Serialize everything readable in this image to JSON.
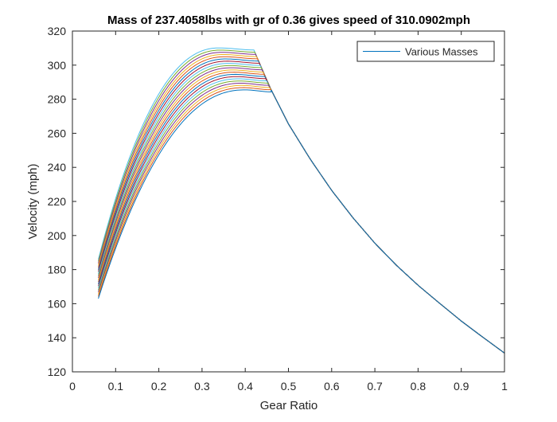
{
  "chart_data": {
    "type": "line",
    "title": "Mass of 237.4058lbs with gr of 0.36 gives speed of 310.0902mph",
    "xlabel": "Gear Ratio",
    "ylabel": "Velocity (mph)",
    "xlim": [
      0,
      1
    ],
    "ylim": [
      120,
      320
    ],
    "x_ticks": [
      "0",
      "0.1",
      "0.2",
      "0.3",
      "0.4",
      "0.5",
      "0.6",
      "0.7",
      "0.8",
      "0.9",
      "1"
    ],
    "y_ticks": [
      "120",
      "140",
      "160",
      "180",
      "200",
      "220",
      "240",
      "260",
      "280",
      "300",
      "320"
    ],
    "grid": false,
    "legend": {
      "position": "top-right",
      "entries": [
        "Various Masses"
      ]
    },
    "family": {
      "count": 20,
      "x_start": 0.06,
      "start_velocity_range": [
        163,
        186
      ],
      "plateau_velocity_range": [
        285.5,
        310.1
      ],
      "plateau_x_range": [
        0.34,
        0.4
      ],
      "drop_start_x_range": [
        0.42,
        0.46
      ],
      "tail": {
        "x": [
          0.46,
          0.5,
          0.55,
          0.6,
          0.65,
          0.7,
          0.75,
          0.8,
          0.85,
          0.9,
          0.95,
          1.0
        ],
        "y": [
          285.5,
          265.5,
          245.0,
          226.5,
          210.2,
          195.5,
          182.5,
          170.8,
          160.2,
          149.8,
          140.3,
          131.0
        ]
      }
    },
    "colors": [
      "#0072BD",
      "#D95319",
      "#EDB120",
      "#7E2F8E",
      "#77AC30",
      "#4DBEEE",
      "#A2142F"
    ]
  }
}
